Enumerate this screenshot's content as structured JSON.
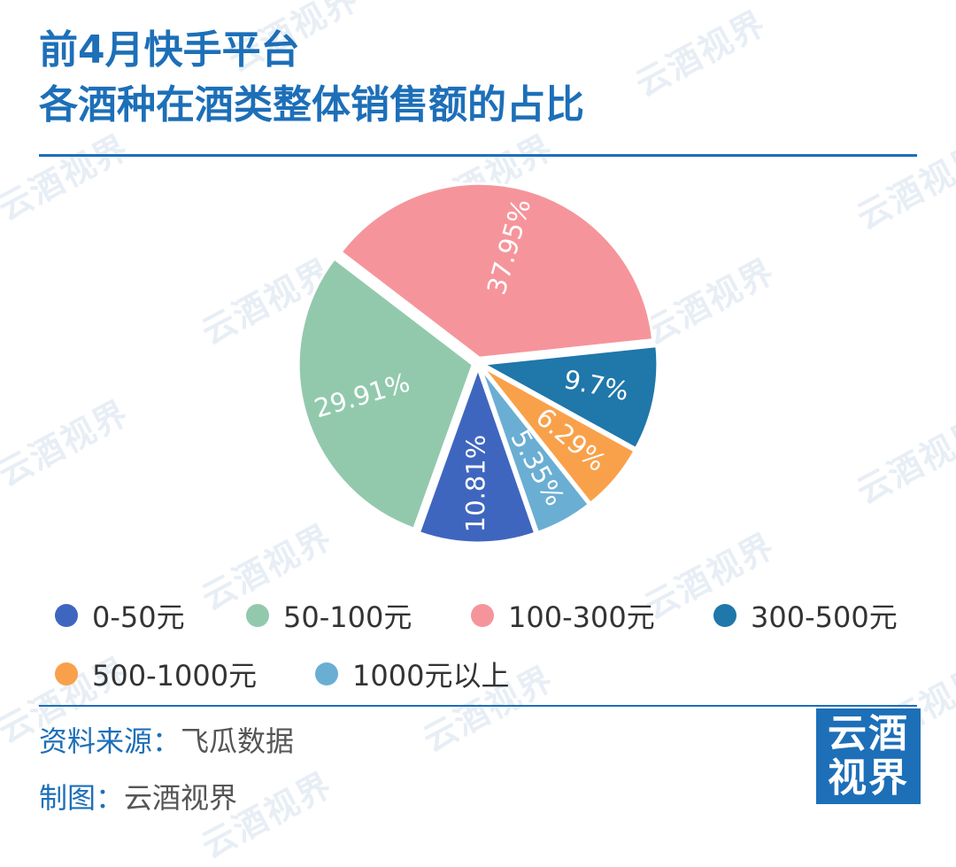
{
  "title": {
    "line1": "前4月快手平台",
    "line2": "各酒种在酒类整体销售额的占比"
  },
  "watermark": "云酒视界",
  "chart_data": {
    "type": "pie",
    "categories": [
      "0-50元",
      "50-100元",
      "100-300元",
      "300-500元",
      "500-1000元",
      "1000元以上"
    ],
    "values": [
      10.81,
      29.91,
      37.95,
      9.7,
      6.29,
      5.35
    ],
    "labels": [
      "10.81%",
      "29.91%",
      "37.95%",
      "9.7%",
      "6.29%",
      "5.35%"
    ],
    "colors": [
      "#3f66bf",
      "#92c9ad",
      "#f5959b",
      "#1f77aa",
      "#f9a14a",
      "#6aaed3"
    ],
    "legend_position": "bottom"
  },
  "footer": {
    "source_key": "资料来源：",
    "source_value": "飞瓜数据",
    "maker_key": "制图：",
    "maker_value": "云酒视界"
  },
  "logo": {
    "line1": "云酒",
    "line2": "视界"
  },
  "colors": {
    "brand": "#1d6fb8"
  }
}
